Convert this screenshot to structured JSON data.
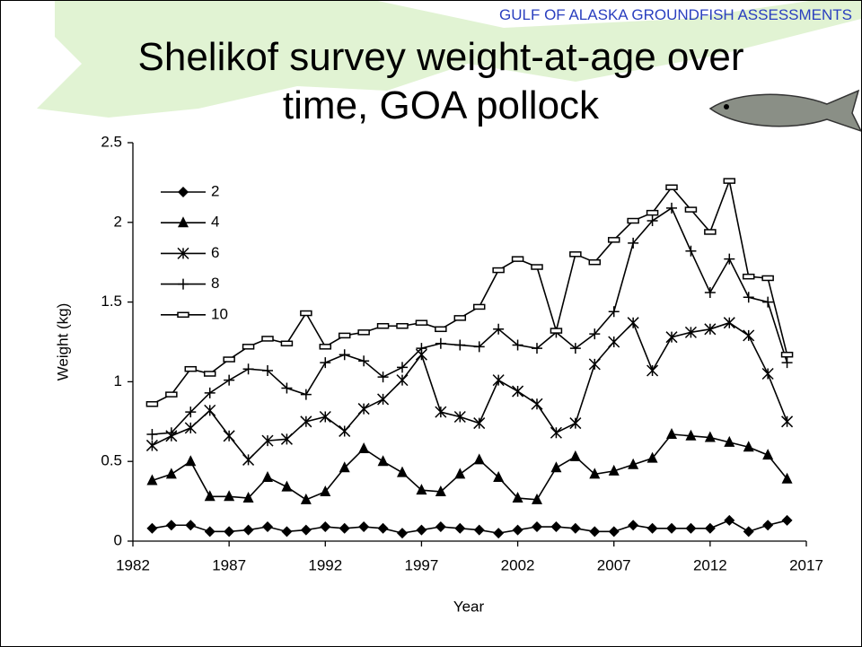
{
  "header": "GULF OF ALASKA GROUNDFISH ASSESSMENTS",
  "chart_data": {
    "type": "line",
    "title": "Shelikof survey weight-at-age over time, GOA pollock",
    "x_label": "Year",
    "y_label": "Weight (kg)",
    "x": [
      1983,
      1984,
      1985,
      1986,
      1987,
      1988,
      1989,
      1990,
      1991,
      1992,
      1993,
      1994,
      1995,
      1996,
      1997,
      1998,
      1999,
      2000,
      2001,
      2002,
      2003,
      2004,
      2005,
      2006,
      2007,
      2008,
      2009,
      2010,
      2011,
      2012,
      2013,
      2014,
      2015,
      2016
    ],
    "xlim": [
      1982,
      2017
    ],
    "xticks": [
      1982,
      1987,
      1992,
      1997,
      2002,
      2007,
      2012,
      2017
    ],
    "ylim": [
      0,
      2.5
    ],
    "yticks": [
      0,
      0.5,
      1,
      1.5,
      2,
      2.5
    ],
    "legend": "upper left",
    "series": [
      {
        "name": "2",
        "color": "#000000",
        "marker": "diamond",
        "values": [
          0.08,
          0.1,
          0.1,
          0.06,
          0.06,
          0.07,
          0.09,
          0.06,
          0.07,
          0.09,
          0.08,
          0.09,
          0.08,
          0.05,
          0.07,
          0.09,
          0.08,
          0.07,
          0.05,
          0.07,
          0.09,
          0.09,
          0.08,
          0.06,
          0.06,
          0.1,
          0.08,
          0.08,
          0.08,
          0.08,
          0.13,
          0.06,
          0.1,
          0.13
        ]
      },
      {
        "name": "4",
        "color": "#000000",
        "marker": "triangle",
        "values": [
          0.38,
          0.42,
          0.5,
          0.28,
          0.28,
          0.27,
          0.4,
          0.34,
          0.26,
          0.31,
          0.46,
          0.58,
          0.5,
          0.43,
          0.32,
          0.31,
          0.42,
          0.51,
          0.4,
          0.27,
          0.26,
          0.46,
          0.53,
          0.42,
          0.44,
          0.48,
          0.52,
          0.67,
          0.66,
          0.65,
          0.62,
          0.59,
          0.54,
          0.39
        ]
      },
      {
        "name": "6",
        "color": "#000000",
        "marker": "star",
        "values": [
          0.6,
          0.66,
          0.71,
          0.82,
          0.66,
          0.51,
          0.63,
          0.64,
          0.75,
          0.78,
          0.69,
          0.83,
          0.89,
          1.01,
          1.17,
          0.81,
          0.78,
          0.74,
          1.01,
          0.94,
          0.86,
          0.68,
          0.74,
          1.11,
          1.25,
          1.37,
          1.07,
          1.28,
          1.31,
          1.33,
          1.37,
          1.29,
          1.05,
          0.75
        ]
      },
      {
        "name": "8",
        "color": "#000000",
        "marker": "plus",
        "values": [
          0.67,
          0.68,
          0.81,
          0.93,
          1.01,
          1.08,
          1.07,
          0.96,
          0.92,
          1.12,
          1.17,
          1.13,
          1.03,
          1.09,
          1.21,
          1.24,
          1.23,
          1.22,
          1.33,
          1.23,
          1.21,
          1.31,
          1.21,
          1.3,
          1.44,
          1.87,
          2.01,
          2.09,
          1.82,
          1.56,
          1.77,
          1.53,
          1.5,
          1.12
        ]
      },
      {
        "name": "10",
        "color": "#000000",
        "marker": "dash",
        "values": [
          0.86,
          0.92,
          1.08,
          1.05,
          1.14,
          1.22,
          1.27,
          1.24,
          1.43,
          1.22,
          1.29,
          1.31,
          1.35,
          1.35,
          1.37,
          1.33,
          1.4,
          1.47,
          1.7,
          1.77,
          1.72,
          1.32,
          1.8,
          1.75,
          1.89,
          2.01,
          2.06,
          2.22,
          2.08,
          1.94,
          2.26,
          1.66,
          1.65,
          1.17
        ]
      }
    ]
  }
}
